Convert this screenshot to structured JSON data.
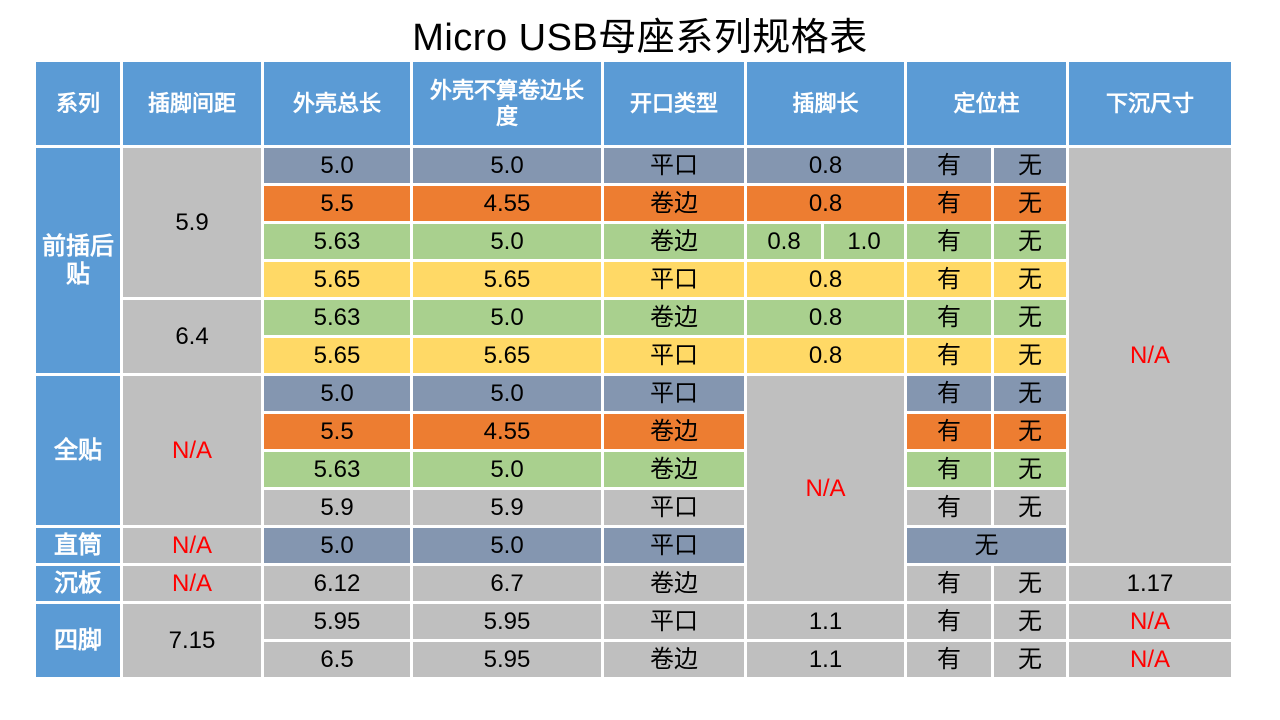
{
  "title": "Micro USB母座系列规格表",
  "colors": {
    "header_blue": "#5B9BD5",
    "blue_gray_row": "#8496B0",
    "orange_row": "#ED7D31",
    "green_row": "#A9D08E",
    "yellow_row": "#FFD966",
    "gray_cell": "#BFBFBF",
    "na_red_text": "#FF0000",
    "header_text": "#ffffff",
    "body_text": "#000000"
  },
  "grid": {
    "header": [
      "系列",
      "插脚间距",
      "外壳总长",
      "外壳不算卷边长度",
      "开口类型",
      "插脚长",
      "定位柱",
      "下沉尺寸"
    ],
    "rows": [
      [
        "前插后贴",
        "5.9",
        "5.0",
        "5.0",
        "平口",
        "0.8",
        "有",
        "无",
        "N/A"
      ],
      [
        "5.5",
        "4.55",
        "卷边",
        "0.8",
        "有",
        "无"
      ],
      [
        "5.63",
        "5.0",
        "卷边",
        "0.8",
        "1.0",
        "有",
        "无"
      ],
      [
        "5.65",
        "5.65",
        "平口",
        "0.8",
        "有",
        "无"
      ],
      [
        "6.4",
        "5.63",
        "5.0",
        "卷边",
        "0.8",
        "有",
        "无"
      ],
      [
        "5.65",
        "5.65",
        "平口",
        "0.8",
        "有",
        "无"
      ],
      [
        "全贴",
        "N/A",
        "5.0",
        "5.0",
        "平口",
        "N/A",
        "有",
        "无"
      ],
      [
        "5.5",
        "4.55",
        "卷边",
        "有",
        "无"
      ],
      [
        "5.63",
        "5.0",
        "卷边",
        "有",
        "无"
      ],
      [
        "5.9",
        "5.9",
        "平口",
        "有",
        "无"
      ],
      [
        "直筒",
        "N/A",
        "5.0",
        "5.0",
        "平口",
        "无"
      ],
      [
        "沉板",
        "N/A",
        "6.12",
        "6.7",
        "卷边",
        "有",
        "无",
        "1.17"
      ],
      [
        "四脚",
        "7.15",
        "5.95",
        "5.95",
        "平口",
        "1.1",
        "有",
        "无",
        "N/A"
      ],
      [
        "6.5",
        "5.95",
        "卷边",
        "1.1",
        "有",
        "无",
        "N/A"
      ]
    ]
  }
}
